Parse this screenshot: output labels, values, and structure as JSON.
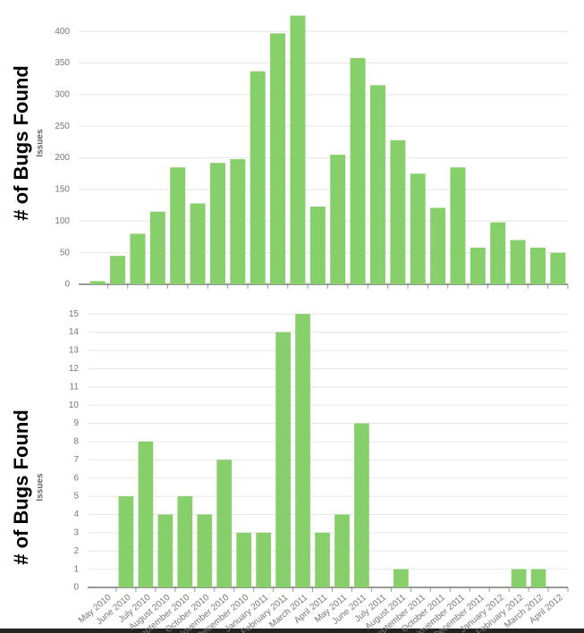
{
  "chart_data": [
    {
      "type": "bar",
      "y_label": "# of Bugs Found",
      "y_sublabel": "Issues",
      "color": "#86cf6a",
      "values": [
        5,
        45,
        80,
        115,
        185,
        128,
        192,
        198,
        337,
        397,
        425,
        123,
        205,
        358,
        315,
        228,
        175,
        121,
        185,
        58,
        98,
        70,
        58,
        50
      ],
      "ylim": [
        0,
        430
      ],
      "yticks": [
        0,
        50,
        100,
        150,
        200,
        250,
        300,
        350,
        400
      ],
      "grid": true
    },
    {
      "type": "bar",
      "y_label": "# of Bugs Found",
      "y_sublabel": "Issues",
      "color": "#86cf6a",
      "categories": [
        "May 2010",
        "June 2010",
        "July 2010",
        "August 2010",
        "September 2010",
        "October 2010",
        "November 2010",
        "December 2010",
        "January 2011",
        "February 2011",
        "March 2011",
        "April 2011",
        "May 2011",
        "June 2011",
        "July 2011",
        "August 2011",
        "September 2011",
        "October 2011",
        "November 2011",
        "December 2011",
        "January 2012",
        "February 2012",
        "March 2012",
        "April 2012"
      ],
      "values": [
        0,
        5,
        8,
        4,
        5,
        4,
        7,
        3,
        3,
        14,
        15,
        3,
        4,
        9,
        0,
        1,
        0,
        0,
        0,
        0,
        0,
        1,
        1,
        0
      ],
      "ylim": [
        0,
        15.5
      ],
      "yticks": [
        0,
        1,
        2,
        3,
        4,
        5,
        6,
        7,
        8,
        9,
        10,
        11,
        12,
        13,
        14,
        15
      ],
      "grid": true
    }
  ]
}
